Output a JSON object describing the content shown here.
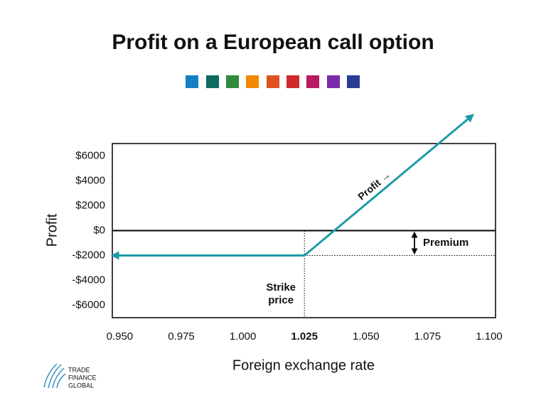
{
  "chart_data": {
    "type": "line",
    "title": "Profit on a European call option",
    "x_label": "Foreign exchange rate",
    "y_label": "Profit",
    "series": [
      {
        "name": "Profit",
        "color": "#1e9aa8",
        "x": [
          0.947,
          1.025,
          1.0934
        ],
        "values": [
          -2000,
          -2000,
          9300
        ]
      }
    ],
    "xlim": [
      0.947,
      1.1026
    ],
    "ylim": [
      -7000,
      7000
    ],
    "xticks": [
      {
        "value": 0.95,
        "label": "0.950"
      },
      {
        "value": 0.975,
        "label": "0.975"
      },
      {
        "value": 1.0,
        "label": "1.000"
      },
      1.025,
      {
        "value": 1.05,
        "label": "1.050"
      },
      {
        "value": 1.075,
        "label": "1.075"
      },
      {
        "value": 1.1,
        "label": "1.100"
      }
    ],
    "yticks": [
      {
        "value": 6000,
        "label": "$6000"
      },
      {
        "value": 4000,
        "label": "$4000"
      },
      {
        "value": 2000,
        "label": "$2000"
      },
      {
        "value": 0,
        "label": "$0"
      },
      {
        "value": -2000,
        "label": "-$2000"
      },
      {
        "value": -4000,
        "label": "-$4000"
      },
      {
        "value": -6000,
        "label": "-$6000"
      }
    ],
    "annotations": {
      "line_label": "Profit →",
      "strike": [
        "Strike",
        "price"
      ],
      "premium": "Premium"
    },
    "logo": [
      "TRADE",
      "FINANCE",
      "GLOBAL"
    ]
  }
}
